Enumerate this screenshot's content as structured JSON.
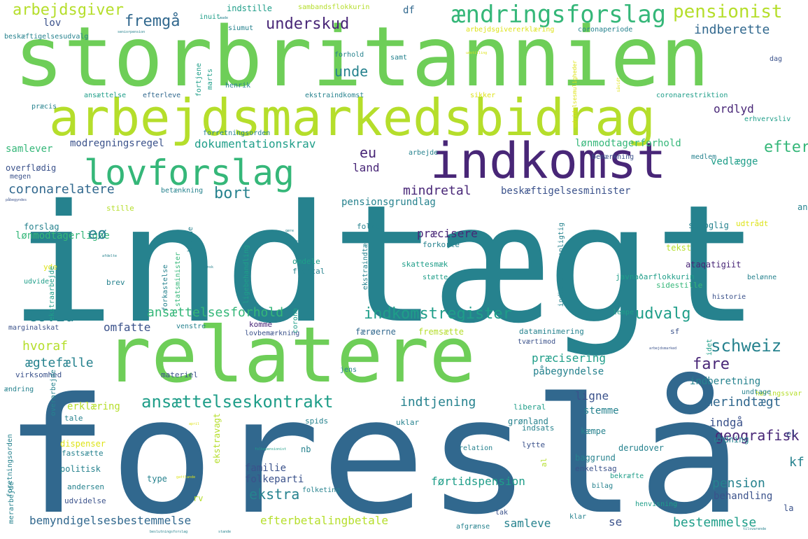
{
  "palette": {
    "purple": "#482677",
    "indigo": "#3b528b",
    "blue": "#31688e",
    "teal": "#26828e",
    "green": "#1f9e89",
    "emerald": "#35b779",
    "lime": "#6ece58",
    "yellowgreen": "#b5de2b",
    "yellow": "#dde318"
  },
  "words": [
    {
      "text": "indtægt",
      "color": "teal"
    },
    {
      "text": "foreslå",
      "color": "blue"
    },
    {
      "text": "storbritannien",
      "color": "lime"
    },
    {
      "text": "relatere",
      "color": "lime"
    },
    {
      "text": "arbejdsmarkedsbidrag",
      "color": "yellowgreen"
    },
    {
      "text": "indkomst",
      "color": "purple"
    },
    {
      "text": "lovforslag",
      "color": "emerald"
    },
    {
      "text": "ændringsforslag",
      "color": "emerald"
    },
    {
      "text": "pensionist",
      "color": "yellowgreen"
    },
    {
      "text": "arbejdsgiver",
      "color": "yellowgreen"
    },
    {
      "text": "fremgå",
      "color": "blue"
    },
    {
      "text": "underskud",
      "color": "purple"
    },
    {
      "text": "indberette",
      "color": "blue"
    },
    {
      "text": "indstille",
      "color": "green"
    },
    {
      "text": "sambandsflokkurin",
      "color": "yellowgreen"
    },
    {
      "text": "arbejdsgivererklæring",
      "color": "yellow"
    },
    {
      "text": "coronaperiode",
      "color": "teal"
    },
    {
      "text": "lov",
      "color": "indigo"
    },
    {
      "text": "inuit",
      "color": "green"
    },
    {
      "text": "siumut",
      "color": "teal"
    },
    {
      "text": "df",
      "color": "blue"
    },
    {
      "text": "unde",
      "color": "teal"
    },
    {
      "text": "forhold",
      "color": "teal"
    },
    {
      "text": "samt",
      "color": "teal"
    },
    {
      "text": "dag",
      "color": "indigo"
    },
    {
      "text": "ansættelse",
      "color": "green"
    },
    {
      "text": "efterleve",
      "color": "blue"
    },
    {
      "text": "henrik",
      "color": "teal"
    },
    {
      "text": "ekstraindkomst",
      "color": "teal"
    },
    {
      "text": "sikker",
      "color": "yellow"
    },
    {
      "text": "coronarestriktion",
      "color": "green"
    },
    {
      "text": "præcis",
      "color": "teal"
    },
    {
      "text": "erhvervsliv",
      "color": "green"
    },
    {
      "text": "ordlyd",
      "color": "purple"
    },
    {
      "text": "beskæftigelsesudvalg",
      "color": "teal"
    },
    {
      "text": "samlever",
      "color": "emerald"
    },
    {
      "text": "modregningsregel",
      "color": "indigo"
    },
    {
      "text": "dokumentationskrav",
      "color": "green"
    },
    {
      "text": "forretningsorden",
      "color": "teal"
    },
    {
      "text": "lønmodtagerforhold",
      "color": "emerald"
    },
    {
      "text": "bemærkning",
      "color": "indigo"
    },
    {
      "text": "medlem",
      "color": "teal"
    },
    {
      "text": "efterregulering",
      "color": "emerald"
    },
    {
      "text": "overflødig",
      "color": "indigo"
    },
    {
      "text": "arbejde",
      "color": "teal"
    },
    {
      "text": "land",
      "color": "purple"
    },
    {
      "text": "eu",
      "color": "purple"
    },
    {
      "text": "vedlægge",
      "color": "green"
    },
    {
      "text": "megen",
      "color": "indigo"
    },
    {
      "text": "coronarelatere",
      "color": "blue"
    },
    {
      "text": "bort",
      "color": "teal"
    },
    {
      "text": "betænkning",
      "color": "teal"
    },
    {
      "text": "mindretal",
      "color": "purple"
    },
    {
      "text": "beskæftigelsesminister",
      "color": "indigo"
    },
    {
      "text": "ansættelsestidspunkt",
      "color": "teal"
    },
    {
      "text": "lønmodtagerligne",
      "color": "emerald"
    },
    {
      "text": "forslag",
      "color": "teal"
    },
    {
      "text": "eø",
      "color": "teal"
    },
    {
      "text": "pensionsgrundlag",
      "color": "teal"
    },
    {
      "text": "sproglig",
      "color": "teal"
    },
    {
      "text": "udtrådt",
      "color": "yellow"
    },
    {
      "text": "stille",
      "color": "yellowgreen"
    },
    {
      "text": "folke",
      "color": "teal"
    },
    {
      "text": "præcisere",
      "color": "purple"
    },
    {
      "text": "forkorte",
      "color": "teal"
    },
    {
      "text": "tekst",
      "color": "yellowgreen"
    },
    {
      "text": "område",
      "color": "teal"
    },
    {
      "text": "ataqatigiit",
      "color": "purple"
    },
    {
      "text": "skattesmæk",
      "color": "green"
    },
    {
      "text": "javnaðarflokkurin",
      "color": "green"
    },
    {
      "text": "yde",
      "color": "yellow"
    },
    {
      "text": "brev",
      "color": "teal"
    },
    {
      "text": "støtte",
      "color": "green"
    },
    {
      "text": "sidestille",
      "color": "emerald"
    },
    {
      "text": "belønne",
      "color": "teal"
    },
    {
      "text": "udvide",
      "color": "green"
    },
    {
      "text": "historie",
      "color": "indigo"
    },
    {
      "text": "covid",
      "color": "teal"
    },
    {
      "text": "ansættelsesforhold",
      "color": "emerald"
    },
    {
      "text": "indkomstregister",
      "color": "green"
    },
    {
      "text": "udvalg",
      "color": "green"
    },
    {
      "text": "omfatte",
      "color": "indigo"
    },
    {
      "text": "komme",
      "color": "purple"
    },
    {
      "text": "lempe",
      "color": "green"
    },
    {
      "text": "marginalskat",
      "color": "indigo"
    },
    {
      "text": "venstre",
      "color": "teal"
    },
    {
      "text": "lovbemærkning",
      "color": "indigo"
    },
    {
      "text": "hvoraf",
      "color": "yellowgreen"
    },
    {
      "text": "færøerne",
      "color": "blue"
    },
    {
      "text": "fremsætte",
      "color": "yellowgreen"
    },
    {
      "text": "dataminimering",
      "color": "teal"
    },
    {
      "text": "sf",
      "color": "indigo"
    },
    {
      "text": "tværtimod",
      "color": "indigo"
    },
    {
      "text": "schweiz",
      "color": "teal"
    },
    {
      "text": "ægtefælle",
      "color": "teal"
    },
    {
      "text": "præcisering",
      "color": "green"
    },
    {
      "text": "fare",
      "color": "purple"
    },
    {
      "text": "virksomhed",
      "color": "indigo"
    },
    {
      "text": "påbegyndelse",
      "color": "teal"
    },
    {
      "text": "materiel",
      "color": "indigo"
    },
    {
      "text": "jens",
      "color": "teal"
    },
    {
      "text": "indberetning",
      "color": "teal"
    },
    {
      "text": "høringssvar",
      "color": "yellowgreen"
    },
    {
      "text": "ændring",
      "color": "teal"
    },
    {
      "text": "ansættelseskontrakt",
      "color": "green"
    },
    {
      "text": "indtjening",
      "color": "teal"
    },
    {
      "text": "ligne",
      "color": "indigo"
    },
    {
      "text": "merindtægt",
      "color": "blue"
    },
    {
      "text": "erklæring",
      "color": "yellowgreen"
    },
    {
      "text": "stemme",
      "color": "teal"
    },
    {
      "text": "indgå",
      "color": "indigo"
    },
    {
      "text": "tale",
      "color": "teal"
    },
    {
      "text": "liberal",
      "color": "green"
    },
    {
      "text": "spids",
      "color": "teal"
    },
    {
      "text": "uklar",
      "color": "teal"
    },
    {
      "text": "indsats",
      "color": "teal"
    },
    {
      "text": "kæmpe",
      "color": "teal"
    },
    {
      "text": "geografisk",
      "color": "purple"
    },
    {
      "text": "ordning",
      "color": "teal"
    },
    {
      "text": "dispenser",
      "color": "yellow"
    },
    {
      "text": "fastsætte",
      "color": "teal"
    },
    {
      "text": "relation",
      "color": "teal"
    },
    {
      "text": "lytte",
      "color": "indigo"
    },
    {
      "text": "derudover",
      "color": "teal"
    },
    {
      "text": "politisk",
      "color": "teal"
    },
    {
      "text": "familie",
      "color": "indigo"
    },
    {
      "text": "folkeparti",
      "color": "indigo"
    },
    {
      "text": "baggrund",
      "color": "teal"
    },
    {
      "text": "enkeltsag",
      "color": "indigo"
    },
    {
      "text": "bekræfte",
      "color": "green"
    },
    {
      "text": "kf",
      "color": "teal"
    },
    {
      "text": "grønland",
      "color": "teal"
    },
    {
      "text": "type",
      "color": "teal"
    },
    {
      "text": "førtidspension",
      "color": "green"
    },
    {
      "text": "pension",
      "color": "teal"
    },
    {
      "text": "behandling",
      "color": "indigo"
    },
    {
      "text": "andersen",
      "color": "teal"
    },
    {
      "text": "udvidelse",
      "color": "indigo"
    },
    {
      "text": "ekstra",
      "color": "teal"
    },
    {
      "text": "folketing",
      "color": "teal"
    },
    {
      "text": "bilag",
      "color": "teal"
    },
    {
      "text": "henvisning",
      "color": "green"
    },
    {
      "text": "la",
      "color": "indigo"
    },
    {
      "text": "rv",
      "color": "yellowgreen"
    },
    {
      "text": "bemyndigelsesbestemmelse",
      "color": "blue"
    },
    {
      "text": "efterbetalingbetale",
      "color": "yellowgreen"
    },
    {
      "text": "samleve",
      "color": "teal"
    },
    {
      "text": "se",
      "color": "indigo"
    },
    {
      "text": "bestemmelse",
      "color": "green"
    },
    {
      "text": "tak",
      "color": "indigo"
    },
    {
      "text": "afgrænse",
      "color": "teal"
    },
    {
      "text": "klar",
      "color": "teal"
    },
    {
      "text": "foretningsorden",
      "color": "teal"
    },
    {
      "text": "merarbejde",
      "color": "teal"
    },
    {
      "text": "overarbejde",
      "color": "teal"
    },
    {
      "text": "ekstravagt",
      "color": "yellowgreen"
    },
    {
      "text": "ekstraarbejde",
      "color": "green"
    },
    {
      "text": "forkastelse",
      "color": "teal"
    },
    {
      "text": "statsminister",
      "color": "emerald"
    },
    {
      "text": "ligebehandling",
      "color": "green"
    },
    {
      "text": "omdele",
      "color": "green"
    },
    {
      "text": "flertal",
      "color": "teal"
    },
    {
      "text": "betyde",
      "color": "teal"
    },
    {
      "text": "indberetningspligtig",
      "color": "teal"
    },
    {
      "text": "ekstraindtægt",
      "color": "teal"
    },
    {
      "text": "fortjene",
      "color": "green"
    },
    {
      "text": "marts",
      "color": "green"
    },
    {
      "text": "udvidelsesmuligheder",
      "color": "yellow"
    },
    {
      "text": "al",
      "color": "yellowgreen"
    },
    {
      "text": "nb",
      "color": "teal"
    },
    {
      "text": "corona",
      "color": "green"
    },
    {
      "text": "undtage",
      "color": "teal"
    },
    {
      "text": "el",
      "color": "indigo"
    },
    {
      "text": "idet",
      "color": "green"
    },
    {
      "text": "made",
      "color": "teal"
    },
    {
      "text": "seniorpension",
      "color": "teal"
    },
    {
      "text": "udstilling",
      "color": "yellow"
    },
    {
      "text": "såvidt",
      "color": "yellow"
    },
    {
      "text": "afdelte",
      "color": "teal"
    },
    {
      "text": "påbegyndes",
      "color": "indigo"
    },
    {
      "text": "gøre",
      "color": "teal"
    },
    {
      "text": "dansk",
      "color": "teal"
    },
    {
      "text": "april",
      "color": "yellow"
    },
    {
      "text": "gattlande",
      "color": "yellow"
    },
    {
      "text": "folkepensionist",
      "color": "green"
    },
    {
      "text": "beslutningsforslag",
      "color": "teal"
    },
    {
      "text": "stande",
      "color": "teal"
    },
    {
      "text": "tilsvarende",
      "color": "teal"
    },
    {
      "text": "arbejdsmarked",
      "color": "indigo"
    }
  ]
}
